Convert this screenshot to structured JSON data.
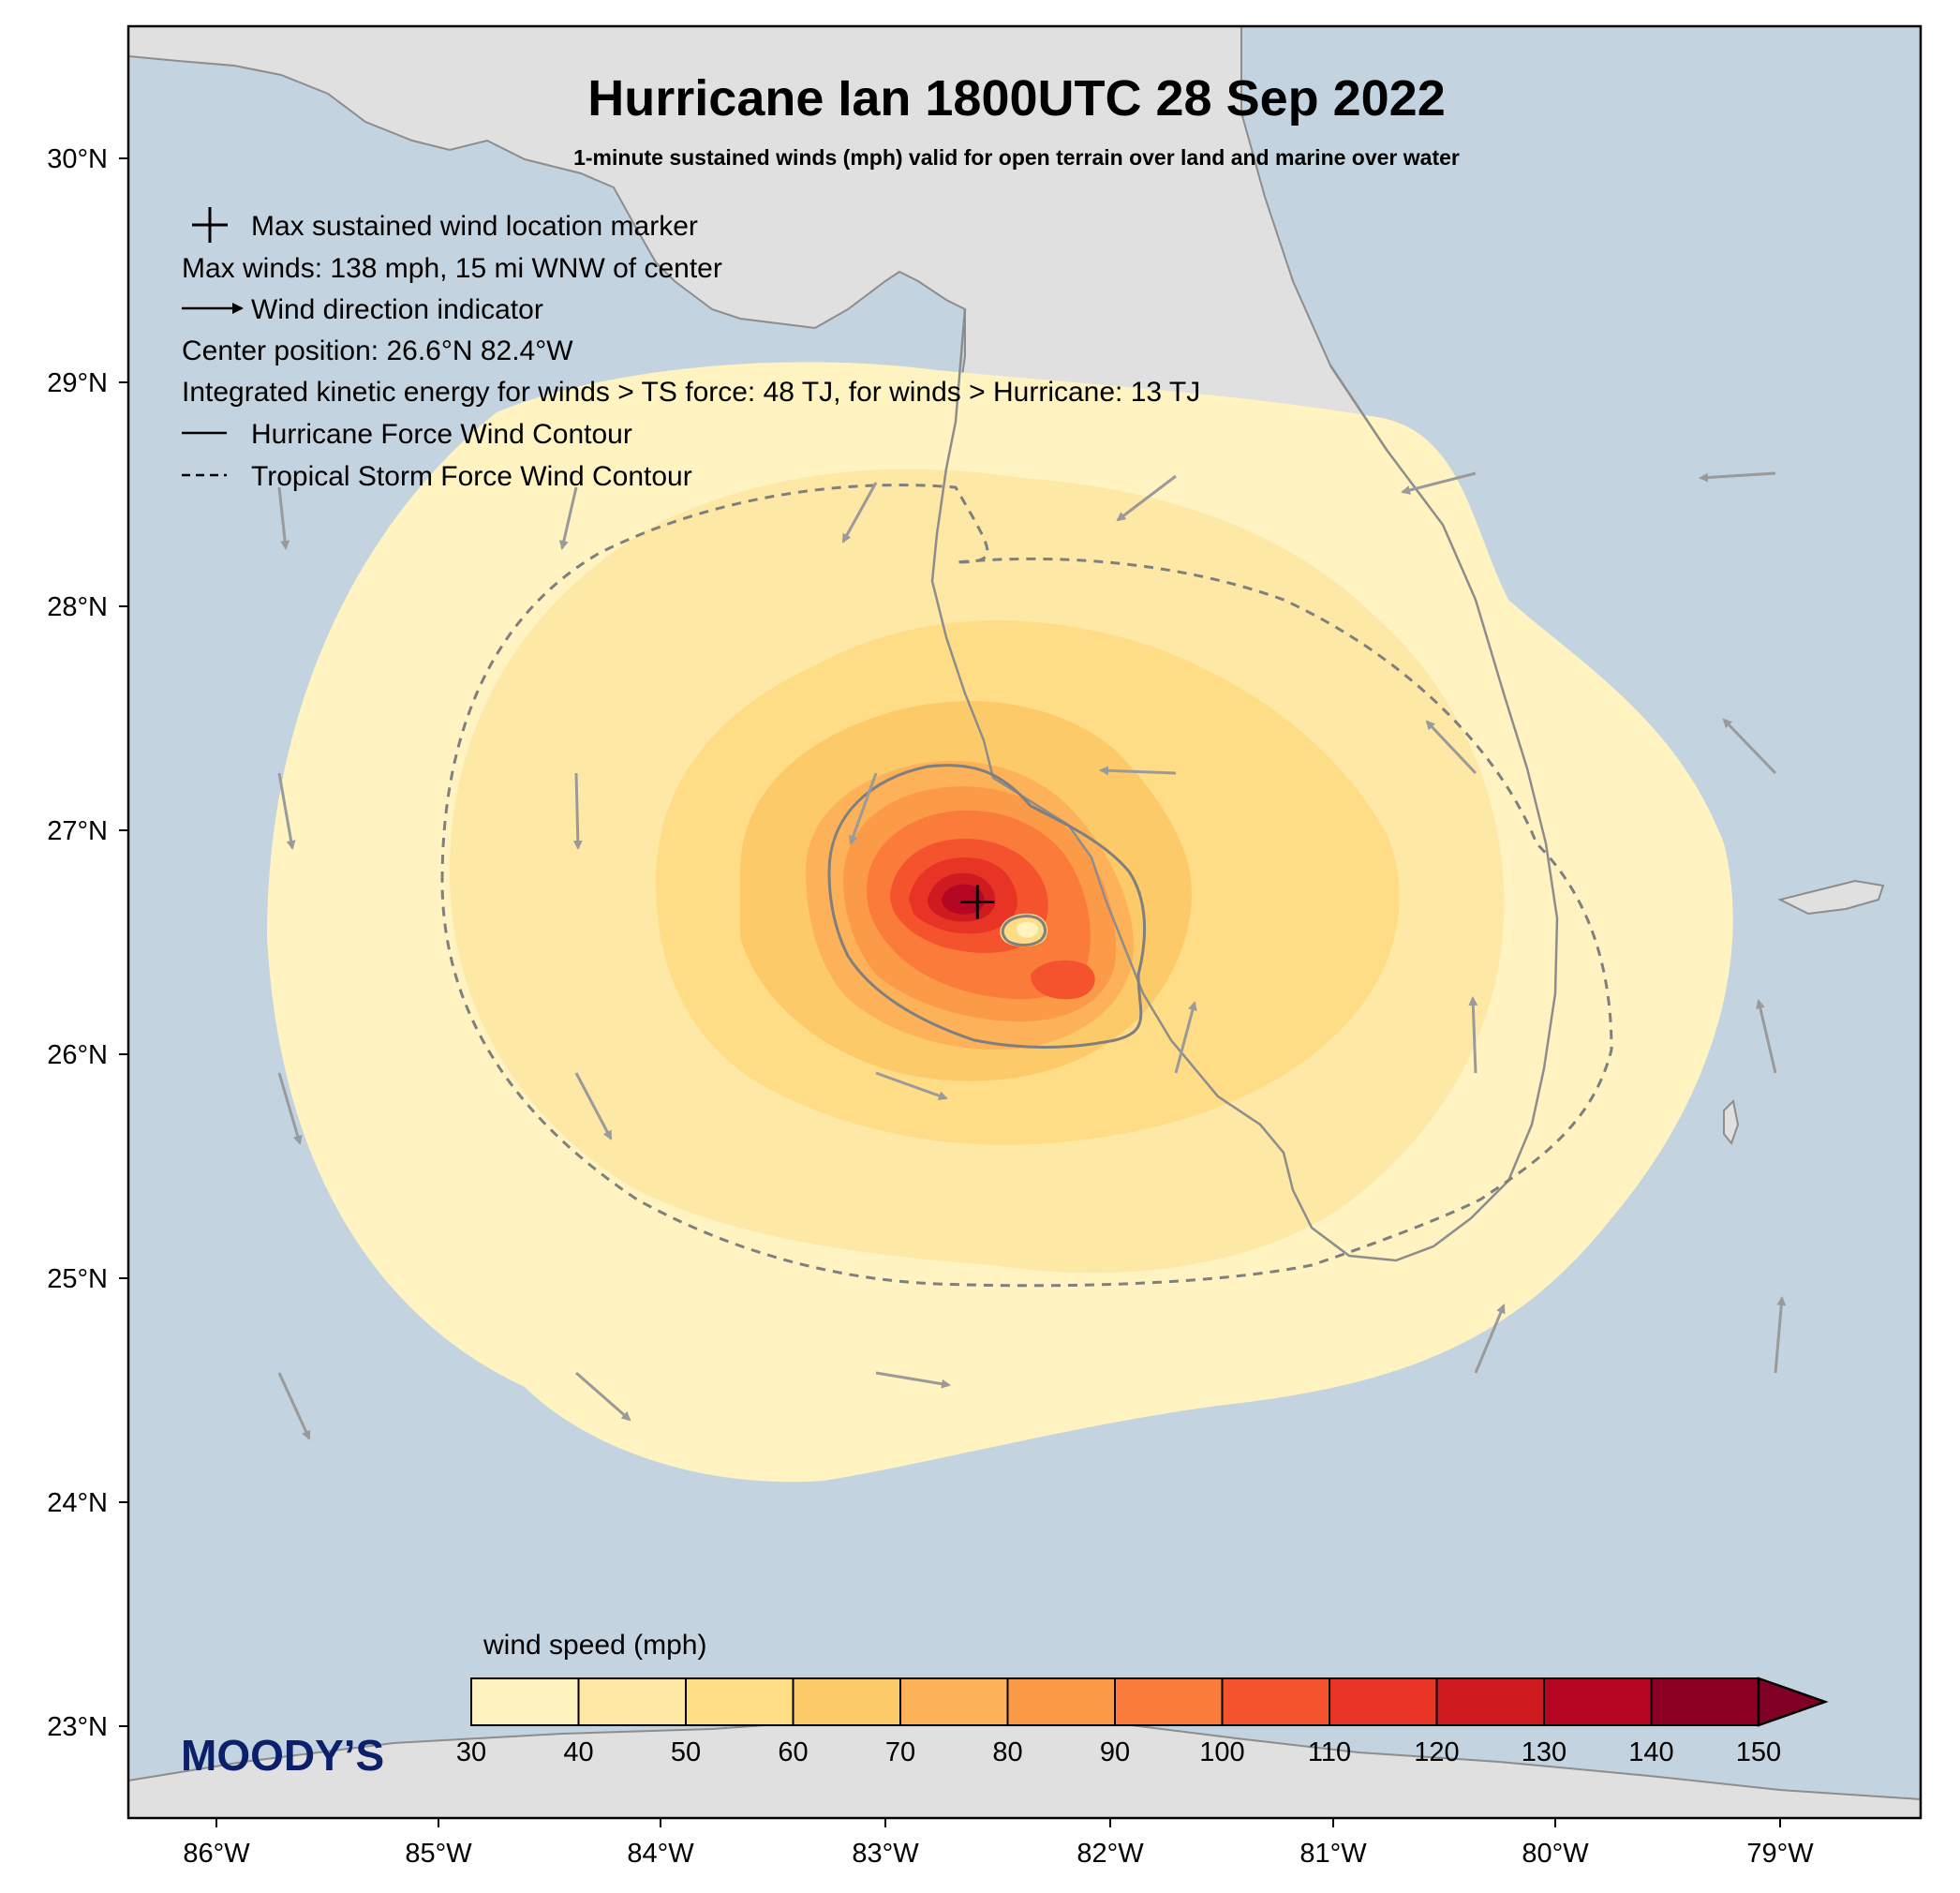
{
  "map": {
    "title": "Hurricane Ian 1800UTC 28 Sep 2022",
    "subtitle": "1-minute sustained winds (mph) valid for open terrain over land and marine over water",
    "lat_labels": [
      "30°N",
      "29°N",
      "28°N",
      "27°N",
      "26°N",
      "25°N",
      "24°N",
      "23°N"
    ],
    "lon_labels": [
      "86°W",
      "85°W",
      "84°W",
      "83°W",
      "82°W",
      "81°W",
      "80°W",
      "79°W"
    ],
    "extent": {
      "lon_min": -86.4,
      "lon_max": -78.4,
      "lat_min": 22.58,
      "lat_max": 30.6
    },
    "colors": {
      "ocean": "#c3d4e0",
      "land": "#e0e0e0",
      "coast": "#8d8d8d",
      "arrow": "#9a9a9a",
      "contour": "#7f7f7f"
    },
    "legend": {
      "marker_text": "Max sustained wind location marker",
      "max_winds_text": "Max winds: 138 mph, 15 mi WNW of center",
      "arrow_text": "Wind direction indicator",
      "center_text": "Center position: 26.6°N 82.4°W",
      "ike_text": "Integrated kinetic energy for winds > TS force: 48 TJ, for winds > Hurricane: 13 TJ",
      "hurricane_contour_text": "Hurricane Force Wind Contour",
      "ts_contour_text": "Tropical Storm Force Wind Contour"
    },
    "max_wind_marker": {
      "lat": 26.68,
      "lon": -82.61
    },
    "colorbar": {
      "label": "wind speed (mph)",
      "ticks": [
        "30",
        "40",
        "50",
        "60",
        "70",
        "80",
        "90",
        "100",
        "110",
        "120",
        "130",
        "140",
        "150"
      ],
      "colors": [
        "#fff3c2",
        "#fee8a6",
        "#fedd86",
        "#fdca69",
        "#fdb25a",
        "#fc9b47",
        "#fb7b3b",
        "#f5532d",
        "#e73424",
        "#cf1a20",
        "#b50723",
        "#8c0024"
      ],
      "extend_color": "#800026"
    },
    "logo": "MOODY’S"
  }
}
